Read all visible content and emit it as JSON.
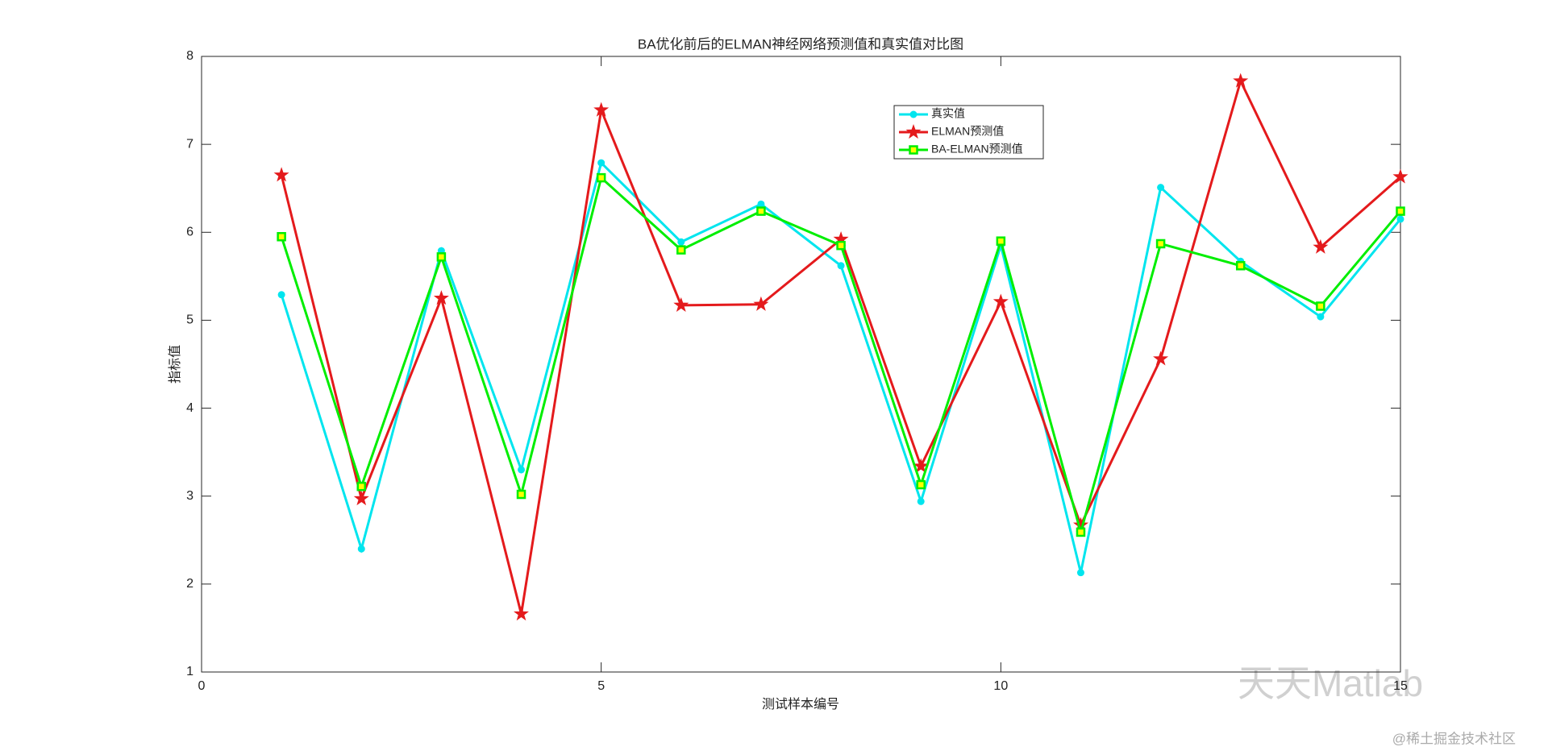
{
  "chart_data": {
    "type": "line",
    "title": "BA优化前后的ELMAN神经网络预测值和真实值对比图",
    "x_label": "测试样本编号",
    "y_label": "指标值",
    "x": [
      1,
      2,
      3,
      4,
      5,
      6,
      7,
      8,
      9,
      10,
      11,
      12,
      13,
      14,
      15
    ],
    "series": [
      {
        "name": "真实值",
        "color": "#00e5ee",
        "marker": "circle",
        "values": [
          5.29,
          2.4,
          5.79,
          3.3,
          6.79,
          5.89,
          6.32,
          5.62,
          2.94,
          5.85,
          2.13,
          6.51,
          5.67,
          5.04,
          6.15
        ]
      },
      {
        "name": "ELMAN预测值",
        "color": "#e41a1c",
        "marker": "star",
        "values": [
          6.65,
          2.97,
          5.25,
          1.66,
          7.39,
          5.17,
          5.18,
          5.92,
          3.34,
          5.21,
          2.67,
          4.56,
          7.72,
          5.83,
          6.63
        ]
      },
      {
        "name": "BA-ELMAN预测值",
        "color": "#00ee00",
        "marker": "square",
        "values": [
          5.95,
          3.11,
          5.72,
          3.02,
          6.62,
          5.8,
          6.24,
          5.85,
          3.13,
          5.9,
          2.59,
          5.87,
          5.62,
          5.16,
          6.24
        ]
      }
    ],
    "xlim": [
      0,
      15
    ],
    "xticks": [
      0,
      5,
      10,
      15
    ],
    "ylim": [
      1,
      8
    ],
    "yticks": [
      1,
      2,
      3,
      4,
      5,
      6,
      7,
      8
    ],
    "legend": "top-right"
  },
  "watermarks": [
    "天天Matlab",
    "@稀土掘金技术社区"
  ]
}
